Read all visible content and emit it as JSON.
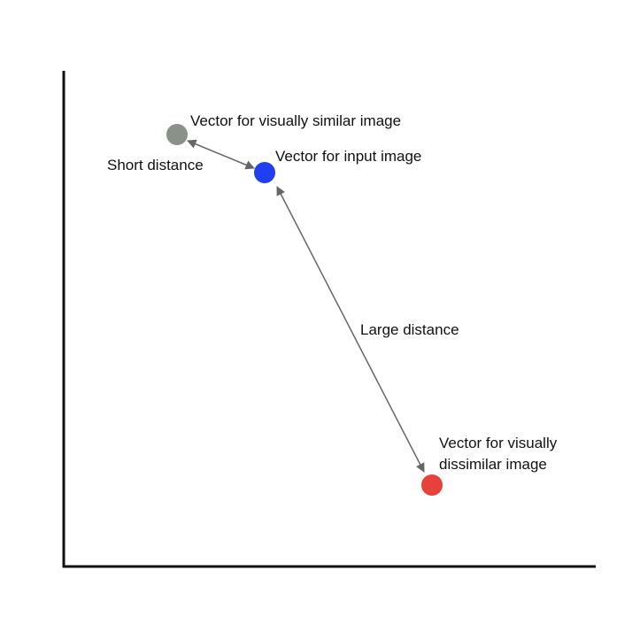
{
  "points": {
    "similar": {
      "label": "Vector for visually similar image",
      "color": "#8a9189"
    },
    "input": {
      "label": "Vector for input image",
      "color": "#1f3ff0"
    },
    "dissimilar": {
      "label_line1": "Vector for visually",
      "label_line2": "dissimilar image",
      "color": "#e8403a"
    }
  },
  "distances": {
    "short": "Short distance",
    "large": "Large distance"
  },
  "colors": {
    "axis": "#111111",
    "arrow": "#666666"
  }
}
